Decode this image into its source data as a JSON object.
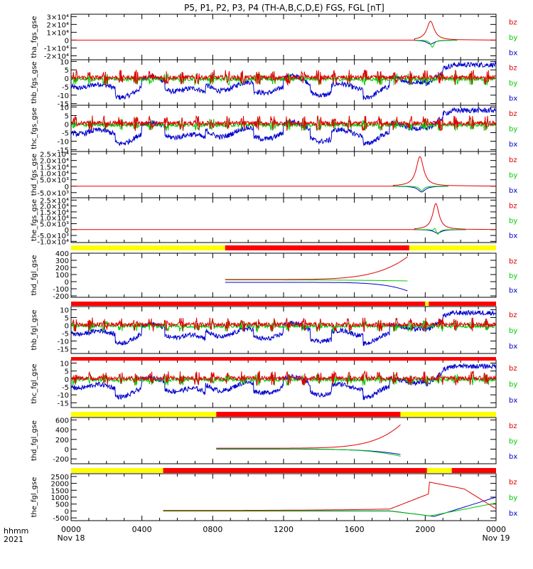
{
  "title": "P5, P1, P2, P3, P4 (TH-A,B,C,D,E) FGS, FGL [nT]",
  "x_axis": {
    "label_row1": "hhmm",
    "label_row2": "2021",
    "ticks": [
      "0000",
      "0400",
      "0800",
      "1200",
      "1600",
      "2000",
      "0000"
    ],
    "dates": [
      "Nov 18",
      "Nov 19"
    ]
  },
  "legend": {
    "bz": "bz",
    "by": "by",
    "bx": "bx"
  },
  "colors": {
    "bz": "#e00000",
    "by": "#00cc00",
    "bx": "#0000cc",
    "bar_yellow": "#ffff00",
    "bar_red": "#ff0000"
  },
  "chart_data": [
    {
      "type": "line",
      "ylabel": "tha_fgs_gse",
      "ylim": [
        -25000,
        33000
      ],
      "yticks": [
        -20000,
        -10000,
        0,
        10000,
        20000,
        30000
      ],
      "ytick_labels": [
        "-2×10⁴",
        "-1×10⁴",
        "0",
        "1×10⁴",
        "2×10⁴",
        "3×10⁴"
      ],
      "data_range_hours": [
        19.4,
        21.8
      ],
      "series": [
        "bz",
        "by",
        "bx"
      ]
    },
    {
      "type": "line",
      "ylabel": "thb_fgs_gse",
      "ylim": [
        -16,
        11
      ],
      "yticks": [
        -15,
        -10,
        -5,
        0,
        5,
        10
      ],
      "ytick_labels": [
        "-15",
        "-10",
        "-5",
        "0",
        "5",
        "10"
      ],
      "data_range_hours": [
        0,
        24
      ],
      "series": [
        "bz",
        "by",
        "bx"
      ]
    },
    {
      "type": "line",
      "ylabel": "thc_fgs_gse",
      "ylim": [
        -16,
        11
      ],
      "yticks": [
        -15,
        -10,
        -5,
        0,
        5,
        10
      ],
      "ytick_labels": [
        "-15",
        "-10",
        "-5",
        "0",
        "5",
        "10"
      ],
      "data_range_hours": [
        0,
        24
      ],
      "series": [
        "bz",
        "by",
        "bx"
      ]
    },
    {
      "type": "line",
      "ylabel": "thd_fgs_gse",
      "ylim": [
        -9000,
        27000
      ],
      "yticks": [
        -5000,
        0,
        5000,
        10000,
        15000,
        20000,
        25000
      ],
      "ytick_labels": [
        "-5.0×10³",
        "0",
        "5.0×10³",
        "1.0×10⁴",
        "1.5×10⁴",
        "2.0×10⁴",
        "2.5×10⁴"
      ],
      "data_range_hours": [
        18.2,
        21.3
      ],
      "series": [
        "bz",
        "by",
        "bx"
      ]
    },
    {
      "type": "line",
      "ylabel": "the_fgs_gse",
      "ylim": [
        -11000,
        27000
      ],
      "yticks": [
        -10000,
        -5000,
        0,
        5000,
        10000,
        15000,
        20000,
        25000
      ],
      "ytick_labels": [
        "-1.0×10⁴",
        "-5.0×10³",
        "0",
        "5.0×10³",
        "1.0×10⁴",
        "1.5×10⁴",
        "2.0×10⁴",
        "2.5×10⁴"
      ],
      "data_range_hours": [
        19.4,
        22.3
      ],
      "series": [
        "bz",
        "by",
        "bx"
      ]
    },
    {
      "type": "line",
      "ylabel": "thd_fgl_gse",
      "ylim": [
        -220,
        400
      ],
      "yticks": [
        -200,
        -100,
        0,
        100,
        200,
        300,
        400
      ],
      "ytick_labels": [
        "-200",
        "-100",
        "0",
        "100",
        "200",
        "300",
        "400"
      ],
      "data_range_hours": [
        8.7,
        19.0
      ],
      "series": [
        "bz",
        "by",
        "bx"
      ]
    },
    {
      "type": "line",
      "ylabel": "thb_fgl_gse",
      "ylim": [
        -18,
        12
      ],
      "yticks": [
        -15,
        -10,
        -5,
        0,
        5,
        10
      ],
      "ytick_labels": [
        "-15",
        "-10",
        "-5",
        "0",
        "5",
        "10"
      ],
      "data_range_hours": [
        0,
        24
      ],
      "series": [
        "bz",
        "by",
        "bx"
      ]
    },
    {
      "type": "line",
      "ylabel": "thc_fgl_gse",
      "ylim": [
        -18,
        12
      ],
      "yticks": [
        -15,
        -10,
        -5,
        0,
        5,
        10
      ],
      "ytick_labels": [
        "-15",
        "-10",
        "-5",
        "0",
        "5",
        "10"
      ],
      "data_range_hours": [
        0,
        24
      ],
      "series": [
        "bz",
        "by",
        "bx"
      ]
    },
    {
      "type": "line",
      "ylabel": "thd_fgl_gse",
      "ylim": [
        -300,
        650
      ],
      "yticks": [
        -200,
        0,
        200,
        400,
        600
      ],
      "ytick_labels": [
        "-200",
        "0",
        "200",
        "400",
        "600"
      ],
      "data_range_hours": [
        8.2,
        18.6
      ],
      "series": [
        "bz",
        "by",
        "bx"
      ]
    },
    {
      "type": "line",
      "ylabel": "the_fgl_gse",
      "ylim": [
        -700,
        2700
      ],
      "yticks": [
        -500,
        0,
        500,
        1000,
        1500,
        2000,
        2500
      ],
      "ytick_labels": [
        "-500",
        "0",
        "500",
        "1000",
        "1500",
        "2000",
        "2500"
      ],
      "data_range_hours": [
        5.2,
        24
      ],
      "series": [
        "bz",
        "by",
        "bx"
      ]
    }
  ],
  "status_bars": [
    {
      "segments": [
        {
          "from_hours": 0,
          "to_hours": 8.7,
          "color": "yellow"
        },
        {
          "from_hours": 8.7,
          "to_hours": 19.1,
          "color": "red"
        },
        {
          "from_hours": 19.1,
          "to_hours": 24,
          "color": "yellow"
        }
      ]
    },
    {
      "segments": [
        {
          "from_hours": 0,
          "to_hours": 20.0,
          "color": "red"
        },
        {
          "from_hours": 20.0,
          "to_hours": 20.2,
          "color": "yellow"
        },
        {
          "from_hours": 20.2,
          "to_hours": 24,
          "color": "red"
        }
      ]
    },
    {
      "segments": [
        {
          "from_hours": 0,
          "to_hours": 24,
          "color": "red"
        }
      ]
    },
    {
      "segments": [
        {
          "from_hours": 0,
          "to_hours": 8.2,
          "color": "yellow"
        },
        {
          "from_hours": 8.2,
          "to_hours": 18.6,
          "color": "red"
        },
        {
          "from_hours": 18.6,
          "to_hours": 24,
          "color": "yellow"
        }
      ]
    },
    {
      "segments": [
        {
          "from_hours": 0,
          "to_hours": 5.2,
          "color": "yellow"
        },
        {
          "from_hours": 5.2,
          "to_hours": 20.1,
          "color": "red"
        },
        {
          "from_hours": 20.1,
          "to_hours": 21.5,
          "color": "yellow"
        },
        {
          "from_hours": 21.5,
          "to_hours": 24,
          "color": "red"
        }
      ]
    }
  ]
}
